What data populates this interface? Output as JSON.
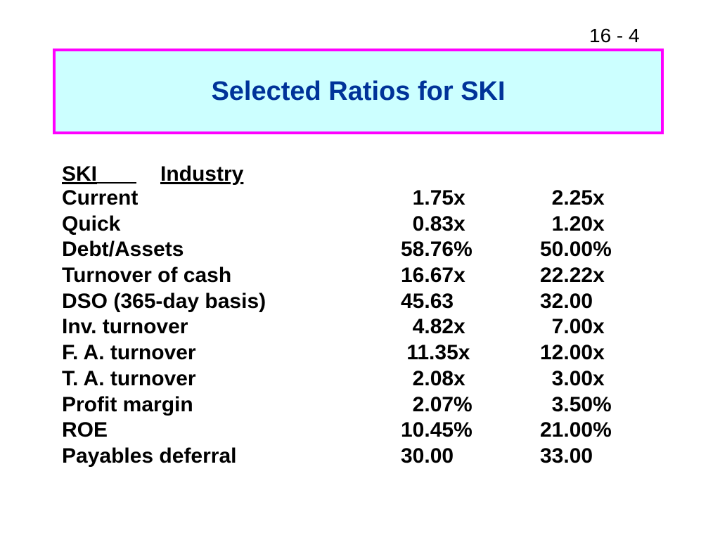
{
  "slide_number": "16 - 4",
  "title": "Selected Ratios for SKI",
  "table": {
    "headers": {
      "ski": "SKI",
      "industry": "Industry"
    },
    "rows": [
      {
        "label": "Current",
        "ski": "  1.75x",
        "industry": "  2.25x"
      },
      {
        "label": "Quick",
        "ski": "  0.83x",
        "industry": "  1.20x"
      },
      {
        "label": "Debt/Assets",
        "ski": "58.76%",
        "industry": "50.00%"
      },
      {
        "label": "Turnover of cash",
        "ski": "16.67x",
        "industry": "22.22x"
      },
      {
        "label": "DSO (365-day basis)",
        "ski": "45.63",
        "industry": "32.00"
      },
      {
        "label": "Inv. turnover",
        "ski": "  4.82x",
        "industry": "  7.00x"
      },
      {
        "label": "F. A. turnover",
        "ski": " 11.35x",
        "industry": "12.00x"
      },
      {
        "label": "T. A. turnover",
        "ski": "  2.08x",
        "industry": "  3.00x"
      },
      {
        "label": "Profit margin",
        "ski": "  2.07%",
        "industry": "  3.50%"
      },
      {
        "label": "ROE",
        "ski": "10.45%",
        "industry": "21.00%"
      },
      {
        "label": "Payables deferral",
        "ski": "30.00",
        "industry": "33.00"
      }
    ]
  },
  "colors": {
    "title_text": "#003399",
    "title_background": "#ccffff",
    "title_border": "#ff00ff"
  }
}
